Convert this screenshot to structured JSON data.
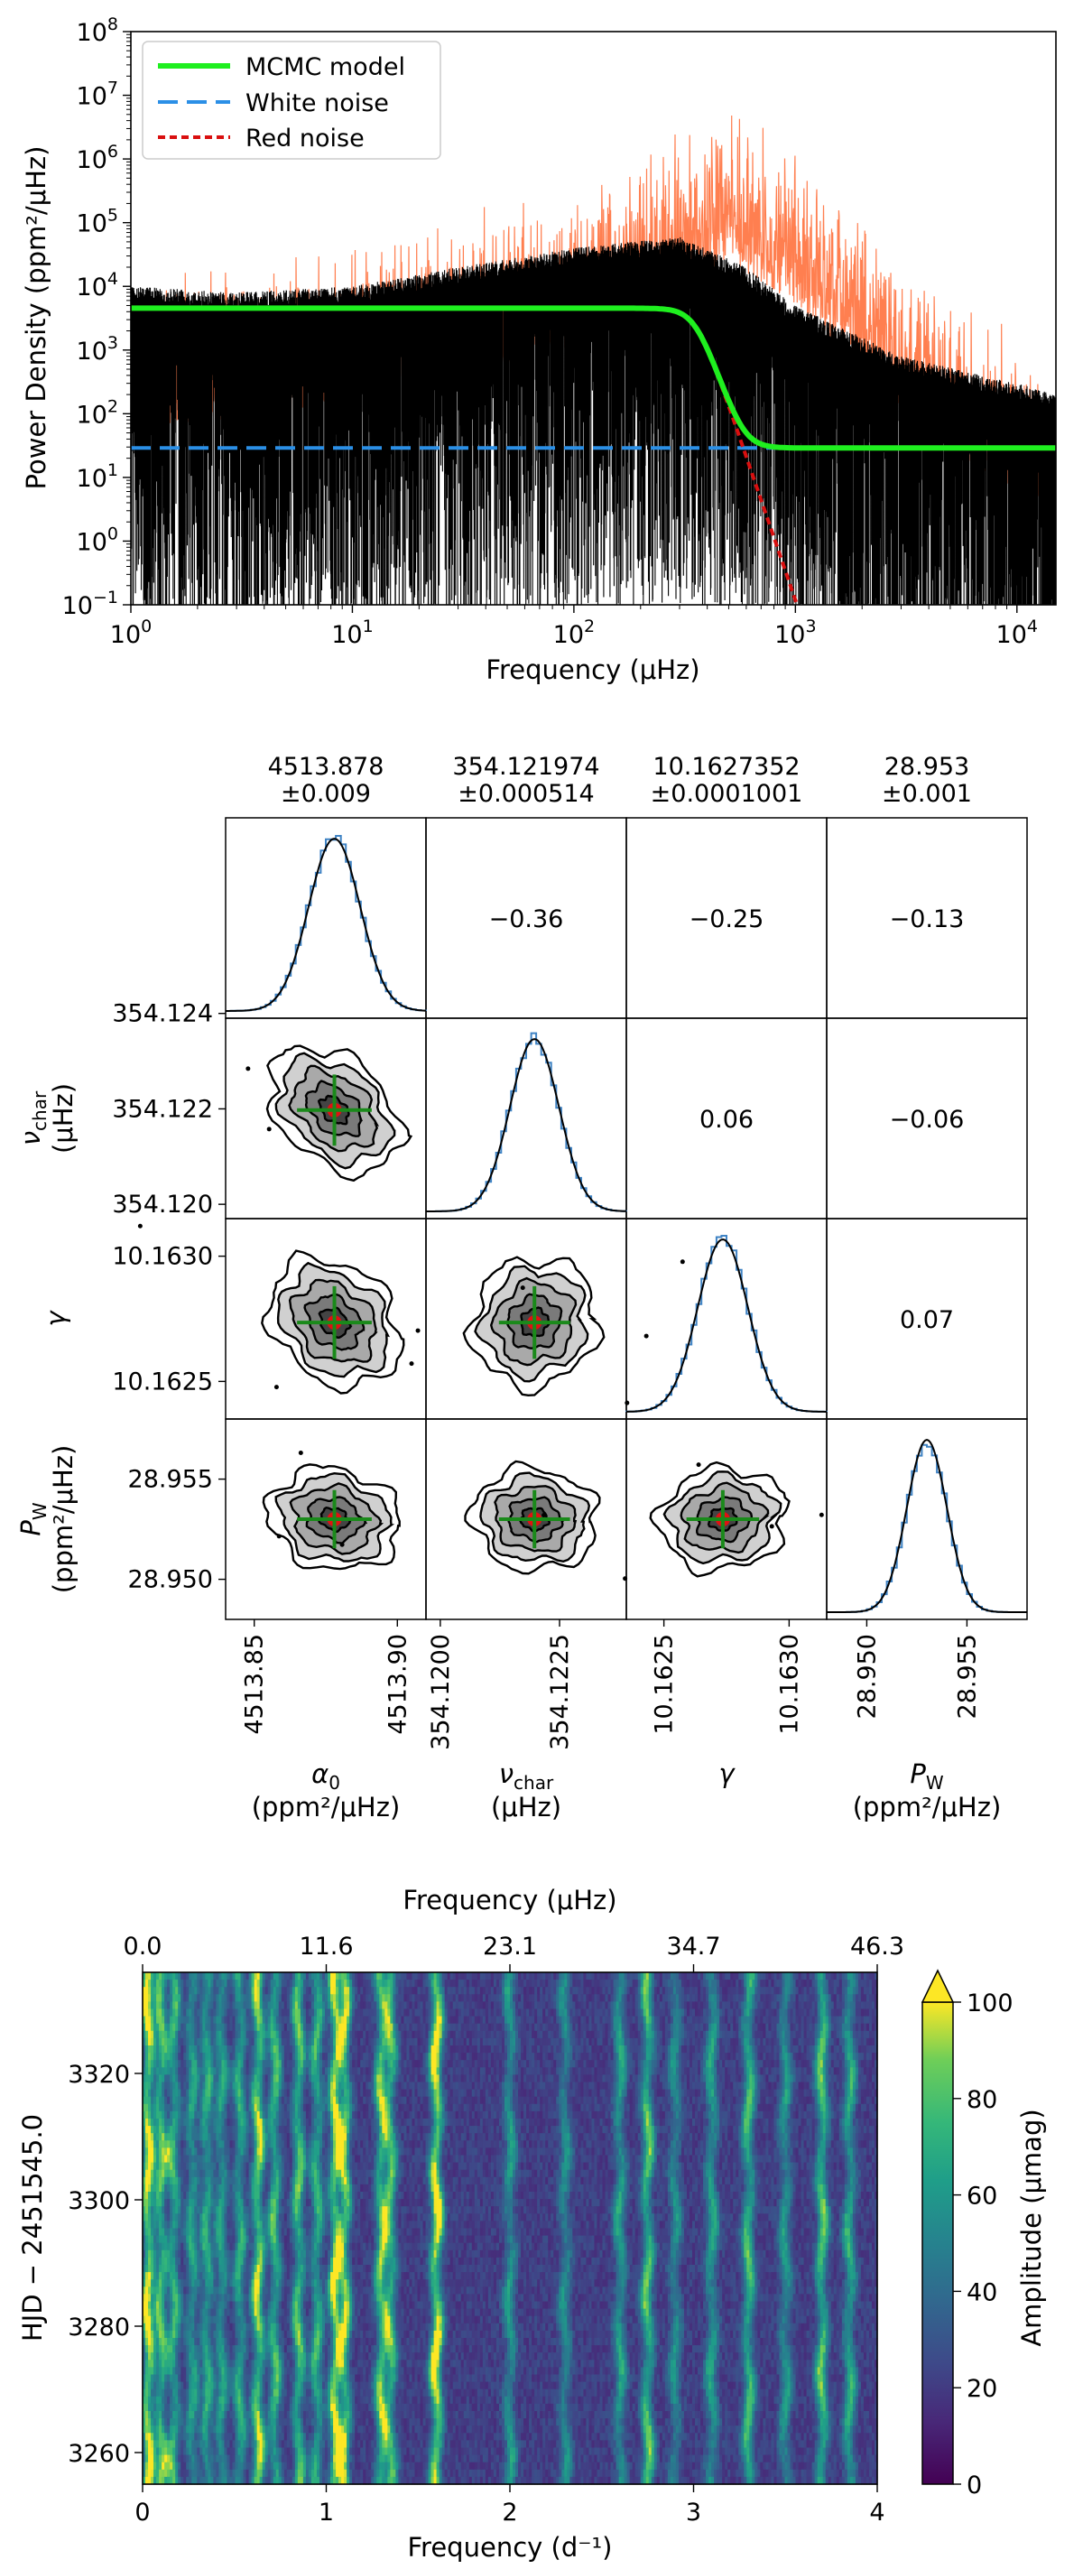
{
  "chart_data": [
    {
      "type": "line",
      "panel": "power-density-spectrum",
      "xlabel": "Frequency (μHz)",
      "ylabel": "Power Density (ppm²/μHz)",
      "xscale": "log",
      "yscale": "log",
      "xlim": [
        1,
        15000
      ],
      "ylim": [
        0.1,
        100000000
      ],
      "x_ticks": [
        {
          "v": 1,
          "b": "10",
          "e": "0"
        },
        {
          "v": 10,
          "b": "10",
          "e": "1"
        },
        {
          "v": 100,
          "b": "10",
          "e": "2"
        },
        {
          "v": 1000,
          "b": "10",
          "e": "3"
        },
        {
          "v": 10000,
          "b": "10",
          "e": "4"
        }
      ],
      "y_ticks": [
        {
          "v": 0.1,
          "b": "10",
          "e": "−1"
        },
        {
          "v": 1,
          "b": "10",
          "e": "0"
        },
        {
          "v": 10,
          "b": "10",
          "e": "1"
        },
        {
          "v": 100,
          "b": "10",
          "e": "2"
        },
        {
          "v": 1000,
          "b": "10",
          "e": "3"
        },
        {
          "v": 10000,
          "b": "10",
          "e": "4"
        },
        {
          "v": 100000,
          "b": "10",
          "e": "5"
        },
        {
          "v": 1000000,
          "b": "10",
          "e": "6"
        },
        {
          "v": 10000000,
          "b": "10",
          "e": "7"
        },
        {
          "v": 100000000,
          "b": "10",
          "e": "8"
        }
      ],
      "legend": {
        "position": "top-left",
        "entries": [
          {
            "label": "MCMC model",
            "color": "#1fef1f",
            "style": "solid"
          },
          {
            "label": "White noise",
            "color": "#2b8fe6",
            "style": "dashed"
          },
          {
            "label": "Red noise",
            "color": "#d90f0f",
            "style": "dotted"
          }
        ]
      },
      "model": {
        "alpha0": 4513.878,
        "nu_char": 354.121974,
        "gamma": 10.1627352,
        "P_W": 28.953
      },
      "series": [
        {
          "name": "Spectrum (orange)",
          "color": "#ff7f50",
          "envelope": [
            [
              1,
              20000
            ],
            [
              3,
              30000
            ],
            [
              10,
              60000
            ],
            [
              30,
              150000
            ],
            [
              100,
              400000
            ],
            [
              300,
              3000000
            ],
            [
              500,
              10000000
            ],
            [
              1000,
              2000000
            ],
            [
              2000,
              200000
            ],
            [
              4000,
              20000
            ],
            [
              8000,
              3000
            ],
            [
              15000,
              1000
            ]
          ]
        },
        {
          "name": "Spectrum (black)",
          "color": "#000000",
          "envelope": [
            [
              1,
              10000
            ],
            [
              3,
              8000
            ],
            [
              10,
              10000
            ],
            [
              30,
              20000
            ],
            [
              100,
              40000
            ],
            [
              300,
              60000
            ],
            [
              600,
              20000
            ],
            [
              1000,
              5000
            ],
            [
              3000,
              800
            ],
            [
              10000,
              300
            ],
            [
              15000,
              200
            ]
          ]
        }
      ]
    },
    {
      "type": "corner",
      "panel": "mcmc-posterior-corner",
      "params": [
        {
          "symbol": "α",
          "sub": "0",
          "unit": "(ppm²/μHz)",
          "title_value": "4513.878",
          "title_err": "±0.009",
          "range": [
            4513.84,
            4513.91
          ],
          "mean": 4513.878,
          "sigma": 0.009,
          "ticks": [
            "4513.85",
            "4513.90"
          ],
          "tick_values": [
            4513.85,
            4513.9
          ]
        },
        {
          "symbol": "ν",
          "sub": "char",
          "unit": "(μHz)",
          "title_value": "354.121974",
          "title_err": "±0.000514",
          "range": [
            354.1197,
            354.1239
          ],
          "mean": 354.121974,
          "sigma": 0.000514,
          "ticks": [
            "354.1200",
            "354.1225"
          ],
          "tick_values": [
            354.12,
            354.1225
          ]
        },
        {
          "symbol": "γ",
          "sub": "",
          "unit": "",
          "title_value": "10.1627352",
          "title_err": "±0.0001001",
          "range": [
            10.16235,
            10.16315
          ],
          "mean": 10.1627352,
          "sigma": 0.0001001,
          "ticks": [
            "10.1625",
            "10.1630"
          ],
          "tick_values": [
            10.1625,
            10.163
          ]
        },
        {
          "symbol": "P",
          "sub": "W",
          "unit": "(ppm²/μHz)",
          "title_value": "28.953",
          "title_err": "±0.001",
          "range": [
            28.948,
            28.958
          ],
          "mean": 28.953,
          "sigma": 0.001,
          "ticks": [
            "28.950",
            "28.955"
          ],
          "tick_values": [
            28.95,
            28.955
          ]
        }
      ],
      "y_ticks": {
        "1": {
          "labels": [
            "354.120",
            "354.122",
            "354.124"
          ],
          "values": [
            354.12,
            354.122,
            354.124
          ]
        },
        "2": {
          "labels": [
            "10.1625",
            "10.1630"
          ],
          "values": [
            10.1625,
            10.163
          ]
        },
        "3": {
          "labels": [
            "28.950",
            "28.955"
          ],
          "values": [
            28.95,
            28.955
          ]
        }
      },
      "correlations": [
        {
          "row": 0,
          "col": 1,
          "value": "−0.36"
        },
        {
          "row": 0,
          "col": 2,
          "value": "−0.25"
        },
        {
          "row": 0,
          "col": 3,
          "value": "−0.13"
        },
        {
          "row": 1,
          "col": 2,
          "value": "0.06"
        },
        {
          "row": 1,
          "col": 3,
          "value": "−0.06"
        },
        {
          "row": 2,
          "col": 3,
          "value": "0.07"
        }
      ],
      "scatter_corr": {
        "1_0": -0.36,
        "2_0": -0.25,
        "2_1": 0.06,
        "3_0": -0.13,
        "3_1": -0.06,
        "3_2": 0.07
      }
    },
    {
      "type": "heatmap",
      "panel": "time-frequency-amplitude",
      "xlabel": "Frequency (d⁻¹)",
      "x2label": "Frequency (μHz)",
      "ylabel": "HJD − 2451545.0",
      "xlim": [
        0,
        4
      ],
      "ylim": [
        3255,
        3336
      ],
      "x_ticks": [
        0,
        1,
        2,
        3,
        4
      ],
      "x2_ticks": [
        "0.0",
        "11.6",
        "23.1",
        "34.7",
        "46.3"
      ],
      "y_ticks": [
        3260,
        3280,
        3300,
        3320
      ],
      "colorbar": {
        "label": "Amplitude (μmag)",
        "range": [
          0,
          100
        ],
        "ticks": [
          0,
          20,
          40,
          60,
          80,
          100
        ],
        "extend": "max",
        "colormap": "viridis"
      },
      "ridges": [
        {
          "f": 0.03,
          "amp": 95
        },
        {
          "f": 0.1,
          "amp": 70
        },
        {
          "f": 0.17,
          "amp": 60
        },
        {
          "f": 0.27,
          "amp": 50
        },
        {
          "f": 0.35,
          "amp": 55
        },
        {
          "f": 0.43,
          "amp": 50
        },
        {
          "f": 0.53,
          "amp": 55
        },
        {
          "f": 0.63,
          "amp": 85
        },
        {
          "f": 0.72,
          "amp": 65
        },
        {
          "f": 0.85,
          "amp": 70
        },
        {
          "f": 0.95,
          "amp": 60
        },
        {
          "f": 1.05,
          "amp": 90
        },
        {
          "f": 1.1,
          "amp": 80
        },
        {
          "f": 1.3,
          "amp": 75
        },
        {
          "f": 1.35,
          "amp": 65
        },
        {
          "f": 1.6,
          "amp": 100
        },
        {
          "f": 2.0,
          "amp": 45
        },
        {
          "f": 2.3,
          "amp": 40
        },
        {
          "f": 2.6,
          "amp": 50
        },
        {
          "f": 2.75,
          "amp": 70
        },
        {
          "f": 2.9,
          "amp": 40
        },
        {
          "f": 3.1,
          "amp": 50
        },
        {
          "f": 3.3,
          "amp": 65
        },
        {
          "f": 3.5,
          "amp": 45
        },
        {
          "f": 3.7,
          "amp": 70
        },
        {
          "f": 3.85,
          "amp": 55
        }
      ]
    }
  ]
}
